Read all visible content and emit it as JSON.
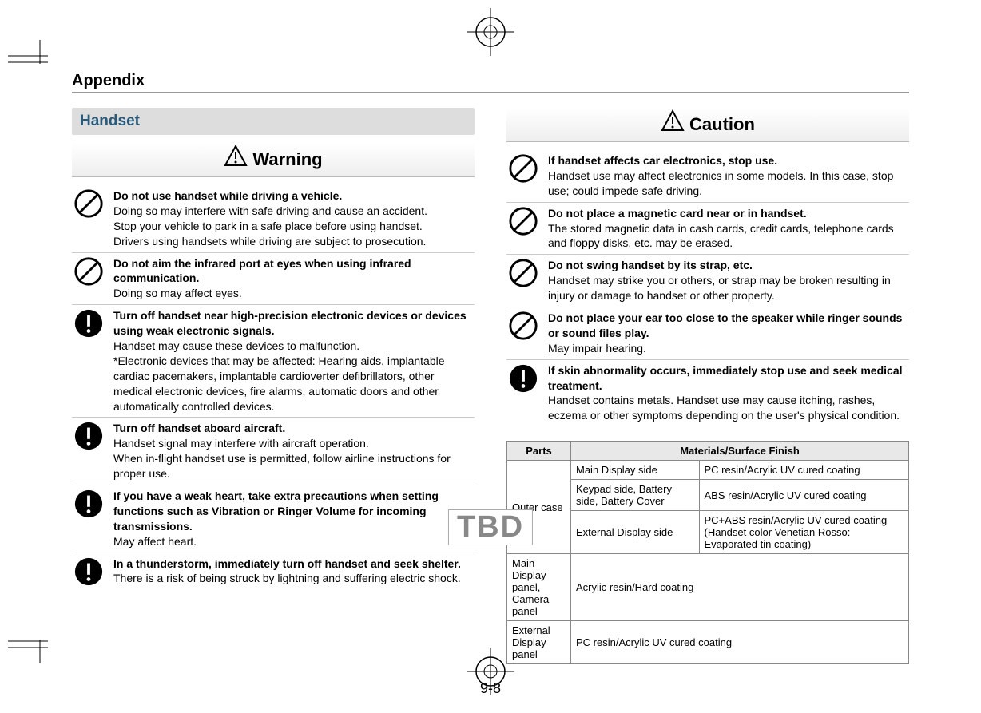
{
  "appendix_label": "Appendix",
  "section_title": "Handset",
  "warning_label": "Warning",
  "caution_label": "Caution",
  "page_num": "9-8",
  "tbd": "TBD",
  "warnings": [
    {
      "icon": "prohibit",
      "head": "Do not use handset while driving a vehicle.",
      "text": "Doing so may interfere with safe driving and cause an accident.\nStop your vehicle to park in a safe place before using handset.\nDrivers using handsets while driving are subject to prosecution."
    },
    {
      "icon": "prohibit",
      "head": "Do not aim the infrared port at eyes when using infrared communication.",
      "text": "Doing so may affect eyes."
    },
    {
      "icon": "mandatory",
      "head": "Turn off handset near high-precision electronic devices or devices using weak electronic signals.",
      "text": "Handset may cause these devices to malfunction.\n*Electronic devices that may be affected: Hearing aids, implantable cardiac pacemakers, implantable cardioverter defibrillators, other medical electronic devices, fire alarms, automatic doors and other automatically controlled devices."
    },
    {
      "icon": "mandatory",
      "head": "Turn off handset aboard aircraft.",
      "text": "Handset signal may interfere with aircraft operation.\nWhen in-flight handset use is permitted, follow airline instructions for proper use."
    },
    {
      "icon": "mandatory",
      "head": "If you have a weak heart, take extra precautions when setting functions such as Vibration or Ringer Volume for incoming transmissions.",
      "text": "May affect heart."
    },
    {
      "icon": "mandatory",
      "head": "In a thunderstorm, immediately turn off handset and seek shelter.",
      "text": "There is a risk of being struck by lightning and suffering electric shock."
    }
  ],
  "cautions": [
    {
      "icon": "prohibit",
      "head": "If handset affects car electronics, stop use.",
      "text": "Handset use may affect electronics in some models. In this case, stop use; could impede safe driving."
    },
    {
      "icon": "prohibit",
      "head": "Do not place a magnetic card near or in handset.",
      "text": "The stored magnetic data in cash cards, credit cards, telephone cards and floppy disks, etc. may be erased."
    },
    {
      "icon": "prohibit",
      "head": "Do not swing handset by its strap, etc.",
      "text": "Handset may strike you or others, or strap may be broken resulting in injury or damage to handset or other property."
    },
    {
      "icon": "prohibit",
      "head": "Do not place your ear too close to the speaker while ringer sounds or sound files play.",
      "text": "May impair hearing."
    },
    {
      "icon": "mandatory",
      "head": "If skin abnormality occurs, immediately stop use and seek medical treatment.",
      "text": "Handset contains metals. Handset use may cause itching, rashes, eczema or other symptoms depending on the user's physical condition."
    }
  ],
  "table": {
    "headers": [
      "Parts",
      "Materials/Surface Finish"
    ],
    "outer_case_label": "Outer case",
    "rows": [
      {
        "sub": "Main Display side",
        "mat": "PC resin/Acrylic UV cured coating"
      },
      {
        "sub": "Keypad side, Battery side, Battery Cover",
        "mat": "ABS resin/Acrylic UV cured coating"
      },
      {
        "sub": "External Display side",
        "mat": "PC+ABS resin/Acrylic UV cured coating (Handset color Venetian Rosso: Evaporated tin coating)"
      }
    ],
    "rows2": [
      {
        "part": "Main Display panel, Camera panel",
        "mat": "Acrylic resin/Hard coating"
      },
      {
        "part": "External Display panel",
        "mat": "PC resin/Acrylic UV cured coating"
      }
    ]
  },
  "colors": {
    "accent": "#2a5a7a",
    "border": "#888"
  }
}
